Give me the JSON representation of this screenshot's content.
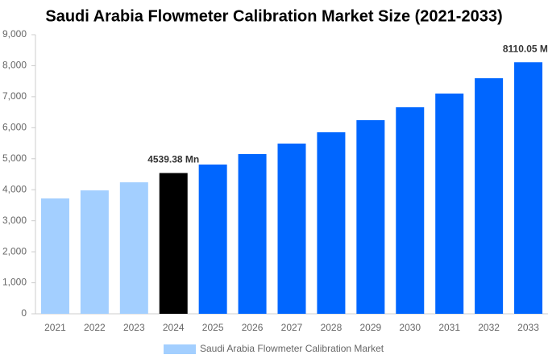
{
  "chart_data": {
    "type": "bar",
    "title": "Saudi Arabia Flowmeter Calibration Market Size (2021-2033)",
    "categories": [
      "2021",
      "2022",
      "2023",
      "2024",
      "2025",
      "2026",
      "2027",
      "2028",
      "2029",
      "2030",
      "2031",
      "2032",
      "2033"
    ],
    "series": [
      {
        "name": "Saudi Arabia Flowmeter Calibration Market",
        "color": "#a3cfff",
        "colors": [
          "#a3cfff",
          "#a3cfff",
          "#a3cfff",
          "#000000",
          "#0066ff",
          "#0066ff",
          "#0066ff",
          "#0066ff",
          "#0066ff",
          "#0066ff",
          "#0066ff",
          "#0066ff",
          "#0066ff"
        ],
        "values": [
          3720,
          3980,
          4240,
          4539.38,
          4813,
          5150,
          5489,
          5853,
          6243,
          6660,
          7102,
          7596,
          8110.05
        ],
        "value_labels": [
          null,
          null,
          null,
          "4539.38 Mn",
          null,
          null,
          null,
          null,
          null,
          null,
          null,
          null,
          "8110.05 Mn"
        ]
      }
    ],
    "ylim": [
      0,
      9000
    ],
    "yticks": [
      0,
      {
        "value": 1000,
        "label": "1,000"
      },
      {
        "value": 2000,
        "label": "2,000"
      },
      {
        "value": 3000,
        "label": "3,000"
      },
      {
        "value": 4000,
        "label": "4,000"
      },
      {
        "value": 5000,
        "label": "5,000"
      },
      {
        "value": 6000,
        "label": "6,000"
      },
      {
        "value": 7000,
        "label": "7,000"
      },
      {
        "value": 8000,
        "label": "8,000"
      },
      {
        "value": 9000,
        "label": "9,000"
      }
    ],
    "grid": false
  }
}
